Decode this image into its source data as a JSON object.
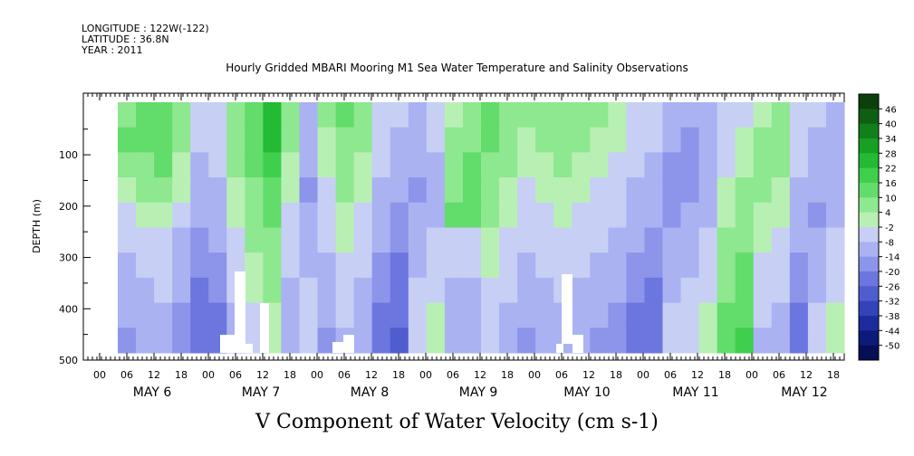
{
  "header": {
    "longitude": "LONGITUDE : 122W(-122)",
    "latitude": "LATITUDE : 36.8N",
    "year": "YEAR : 2011"
  },
  "chart_data": {
    "type": "heatmap",
    "title": "Hourly Gridded MBARI Mooring M1 Sea Water Temperature and Salinity Observations",
    "bottom_title": "V Component of Water Velocity (cm s-1)",
    "ylabel": "DEPTH (m)",
    "ylim": [
      500,
      0
    ],
    "yticks": [
      100,
      200,
      300,
      400,
      500
    ],
    "y_tick_labels": [
      "100",
      "200",
      "300",
      "400",
      "500"
    ],
    "x_hours_per_day": [
      "00",
      "06",
      "12",
      "18"
    ],
    "x_day_labels": [
      "MAY 6",
      "MAY 7",
      "MAY 8",
      "MAY 9",
      "MAY 10",
      "MAY 11",
      "MAY 12"
    ],
    "colorbar": {
      "labels": [
        "46",
        "40",
        "34",
        "28",
        "22",
        "16",
        "10",
        "4",
        "-2",
        "-8",
        "-14",
        "-20",
        "-26",
        "-32",
        "-38",
        "-44",
        "-50"
      ],
      "colors": [
        "#0b3f0b",
        "#0f5f12",
        "#12801a",
        "#17a024",
        "#22bb33",
        "#3fcf4d",
        "#62dc6a",
        "#8ee88f",
        "#b8f0b4",
        "#c7cff5",
        "#aab2f2",
        "#8c95ea",
        "#6b77de",
        "#4f5dcf",
        "#3343b9",
        "#1c2c9c",
        "#0c1a7a",
        "#060e56"
      ]
    },
    "series": [
      {
        "values": [
          [
            8,
            10,
            12,
            6,
            -4,
            -6,
            8,
            14,
            20,
            6,
            -8,
            4,
            10,
            6,
            -2,
            -6,
            -8,
            -4,
            2,
            6,
            10,
            8,
            4,
            6,
            8,
            6,
            4,
            2,
            -2,
            -4,
            -10,
            -12,
            -8,
            -6,
            -2,
            2,
            4,
            -2,
            -6,
            -8
          ],
          [
            10,
            12,
            14,
            4,
            -6,
            -4,
            6,
            12,
            22,
            4,
            -10,
            2,
            8,
            4,
            -4,
            -8,
            -10,
            -6,
            4,
            8,
            10,
            6,
            2,
            4,
            6,
            4,
            2,
            0,
            -4,
            -6,
            -12,
            -14,
            -10,
            -4,
            0,
            4,
            6,
            -4,
            -8,
            -10
          ],
          [
            6,
            8,
            10,
            2,
            -8,
            -6,
            4,
            10,
            18,
            2,
            -12,
            0,
            6,
            2,
            -6,
            -10,
            -12,
            -8,
            6,
            10,
            8,
            4,
            0,
            2,
            4,
            2,
            0,
            -2,
            -6,
            -8,
            -14,
            -16,
            -12,
            -2,
            2,
            6,
            4,
            -6,
            -10,
            -12
          ],
          [
            2,
            4,
            6,
            0,
            -10,
            -8,
            2,
            8,
            14,
            0,
            -14,
            -2,
            4,
            0,
            -8,
            -12,
            -14,
            -10,
            8,
            10,
            6,
            2,
            -2,
            0,
            2,
            0,
            -2,
            -4,
            -8,
            -10,
            -16,
            -14,
            -10,
            0,
            4,
            4,
            2,
            -8,
            -12,
            -10
          ],
          [
            -2,
            0,
            2,
            -4,
            -12,
            -10,
            0,
            6,
            10,
            -2,
            -12,
            -4,
            2,
            -2,
            -10,
            -14,
            -12,
            -8,
            10,
            12,
            4,
            0,
            -4,
            -2,
            0,
            -2,
            -4,
            -6,
            -10,
            -12,
            -14,
            -12,
            -8,
            2,
            6,
            2,
            0,
            -10,
            -14,
            -8
          ],
          [
            -6,
            -4,
            -2,
            -8,
            -14,
            -12,
            -2,
            4,
            8,
            -4,
            -10,
            -6,
            0,
            -4,
            -12,
            -16,
            -10,
            -6,
            -4,
            -4,
            2,
            -2,
            -6,
            -4,
            -2,
            -4,
            -6,
            -8,
            -12,
            -14,
            -12,
            -10,
            -6,
            4,
            8,
            0,
            -2,
            -12,
            -12,
            -6
          ],
          [
            -8,
            -6,
            -4,
            -10,
            -16,
            -14,
            -4,
            2,
            6,
            -6,
            -8,
            -8,
            -2,
            -6,
            -14,
            -18,
            -8,
            -4,
            -6,
            -6,
            0,
            -4,
            -8,
            -6,
            -4,
            -6,
            -8,
            -10,
            -14,
            -16,
            -10,
            -8,
            -4,
            6,
            10,
            -2,
            -4,
            -14,
            -10,
            -4
          ],
          [
            -10,
            -8,
            -6,
            -12,
            -18,
            -16,
            -6,
            0,
            4,
            -8,
            -6,
            -10,
            -4,
            -8,
            -16,
            -20,
            -6,
            -2,
            -8,
            -8,
            -2,
            -6,
            -10,
            -8,
            -6,
            -8,
            -10,
            -12,
            -16,
            -18,
            -8,
            -6,
            -2,
            8,
            12,
            -4,
            -6,
            -16,
            -8,
            -2
          ],
          [
            -12,
            -10,
            -8,
            -14,
            -20,
            -18,
            -8,
            -2,
            2,
            -10,
            -4,
            -12,
            -6,
            -10,
            -18,
            -22,
            -4,
            0,
            -10,
            -10,
            -4,
            -8,
            -12,
            -10,
            -8,
            -10,
            -12,
            -14,
            -18,
            -20,
            -6,
            -4,
            0,
            10,
            14,
            -6,
            -8,
            -18,
            -6,
            0
          ],
          [
            -14,
            -12,
            -10,
            -16,
            -22,
            -20,
            -10,
            -4,
            0,
            -12,
            -2,
            -14,
            -8,
            -12,
            -20,
            -24,
            -2,
            2,
            -12,
            -12,
            -6,
            -10,
            -14,
            -12,
            -10,
            -12,
            -14,
            -16,
            -20,
            -22,
            -4,
            -2,
            2,
            12,
            16,
            -8,
            -10,
            -20,
            -4,
            2
          ]
        ]
      }
    ]
  }
}
